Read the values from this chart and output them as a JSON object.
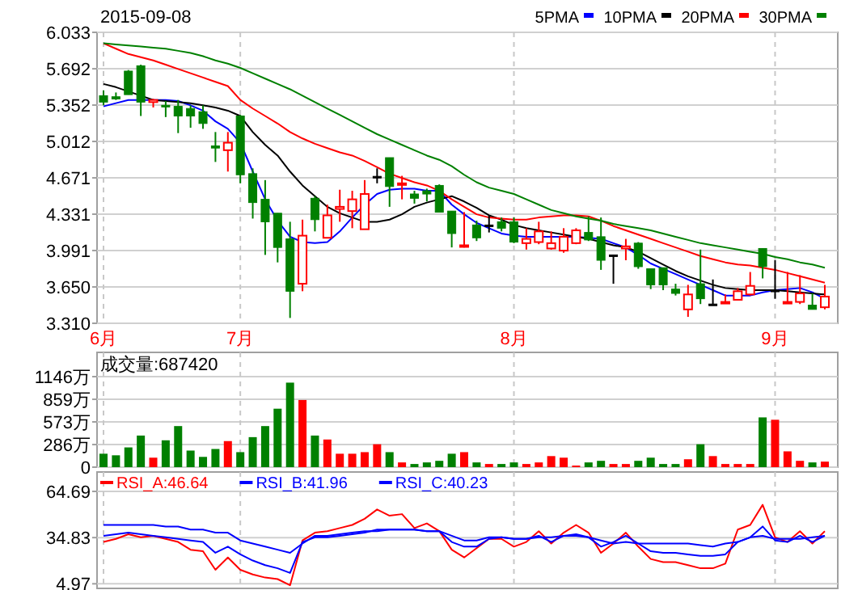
{
  "chart_data": [
    {
      "type": "candlestick",
      "title": "2015-09-08",
      "legend": "top right",
      "grid": true,
      "categories": [
        "6月",
        null,
        null,
        null,
        null,
        null,
        null,
        null,
        null,
        null,
        null,
        "7月",
        null,
        null,
        null,
        null,
        null,
        null,
        null,
        null,
        null,
        null,
        null,
        null,
        null,
        null,
        null,
        null,
        null,
        null,
        null,
        null,
        null,
        "8月",
        null,
        null,
        null,
        null,
        null,
        null,
        null,
        null,
        null,
        null,
        null,
        null,
        null,
        null,
        null,
        null,
        null,
        null,
        null,
        null,
        "9月",
        null,
        null,
        null,
        null
      ],
      "ylim": [
        3.31,
        6.033
      ],
      "yticks": [
        {
          "value": 3.31,
          "label": "3.310"
        },
        {
          "value": 3.65,
          "label": "3.650"
        },
        {
          "value": 3.991,
          "label": "3.991"
        },
        {
          "value": 4.331,
          "label": "4.331"
        },
        {
          "value": 4.671,
          "label": "4.671"
        },
        {
          "value": 5.012,
          "label": "5.012"
        },
        {
          "value": 5.352,
          "label": "5.352"
        },
        {
          "value": 5.692,
          "label": "5.692"
        },
        {
          "value": 6.033,
          "label": "6.033"
        }
      ],
      "ohlc": [
        [
          5.44,
          5.49,
          5.35,
          5.38
        ],
        [
          5.43,
          5.47,
          5.4,
          5.41
        ],
        [
          5.67,
          5.68,
          5.45,
          5.45
        ],
        [
          5.72,
          5.73,
          5.25,
          5.38
        ],
        [
          5.38,
          5.41,
          5.33,
          5.4
        ],
        [
          5.35,
          5.39,
          5.24,
          5.34
        ],
        [
          5.34,
          5.4,
          5.09,
          5.25
        ],
        [
          5.32,
          5.35,
          5.14,
          5.25
        ],
        [
          5.29,
          5.35,
          5.13,
          5.18
        ],
        [
          4.97,
          5.1,
          4.82,
          4.95
        ],
        [
          4.93,
          5.1,
          4.73,
          5.0
        ],
        [
          5.25,
          5.26,
          4.62,
          4.7
        ],
        [
          4.71,
          4.76,
          4.29,
          4.44
        ],
        [
          4.47,
          4.65,
          3.95,
          4.26
        ],
        [
          4.34,
          4.34,
          3.88,
          4.02
        ],
        [
          4.1,
          4.26,
          3.36,
          3.61
        ],
        [
          3.68,
          4.28,
          3.61,
          4.13
        ],
        [
          4.48,
          4.5,
          4.17,
          4.28
        ],
        [
          4.11,
          4.42,
          4.11,
          4.32
        ],
        [
          4.38,
          4.56,
          4.26,
          4.4
        ],
        [
          4.36,
          4.55,
          4.2,
          4.47
        ],
        [
          4.19,
          4.65,
          4.19,
          4.52
        ],
        [
          4.685,
          4.76,
          4.62,
          4.685
        ],
        [
          4.86,
          4.86,
          4.4,
          4.59
        ],
        [
          4.61,
          4.69,
          4.47,
          4.62
        ],
        [
          4.52,
          4.55,
          4.43,
          4.48
        ],
        [
          4.55,
          4.57,
          4.45,
          4.52
        ],
        [
          4.6,
          4.61,
          4.35,
          4.35
        ],
        [
          4.36,
          4.36,
          4.02,
          4.15
        ],
        [
          4.03,
          4.35,
          4.02,
          4.04
        ],
        [
          4.23,
          4.27,
          4.08,
          4.11
        ],
        [
          4.23,
          4.32,
          4.16,
          4.23
        ],
        [
          4.26,
          4.3,
          4.17,
          4.2
        ],
        [
          4.26,
          4.3,
          4.06,
          4.07
        ],
        [
          4.06,
          4.2,
          4.0,
          4.1
        ],
        [
          4.07,
          4.26,
          4.05,
          4.17
        ],
        [
          4.01,
          4.17,
          4.0,
          4.06
        ],
        [
          3.99,
          4.2,
          3.97,
          4.12
        ],
        [
          4.06,
          4.2,
          4.05,
          4.18
        ],
        [
          4.16,
          4.31,
          4.08,
          4.09
        ],
        [
          4.12,
          4.3,
          3.81,
          3.9
        ],
        [
          3.95,
          3.95,
          3.68,
          3.95
        ],
        [
          4.01,
          4.1,
          3.9,
          4.03
        ],
        [
          4.06,
          4.07,
          3.82,
          3.84
        ],
        [
          3.82,
          3.82,
          3.63,
          3.67
        ],
        [
          3.83,
          3.83,
          3.62,
          3.67
        ],
        [
          3.63,
          3.68,
          3.57,
          3.59
        ],
        [
          3.44,
          3.67,
          3.37,
          3.58
        ],
        [
          3.68,
          4.0,
          3.49,
          3.54
        ],
        [
          3.49,
          3.72,
          3.49,
          3.49
        ],
        [
          3.5,
          3.58,
          3.5,
          3.51
        ],
        [
          3.53,
          3.64,
          3.53,
          3.61
        ],
        [
          3.58,
          3.79,
          3.57,
          3.66
        ],
        [
          4.01,
          4.01,
          3.73,
          3.84
        ],
        [
          3.62,
          3.9,
          3.54,
          3.62
        ],
        [
          3.5,
          3.79,
          3.5,
          3.51
        ],
        [
          3.51,
          3.76,
          3.49,
          3.59
        ],
        [
          3.48,
          3.59,
          3.44,
          3.44
        ],
        [
          3.46,
          3.67,
          3.44,
          3.56
        ]
      ],
      "series": [
        {
          "name": "5PMA",
          "type": "line",
          "color": "#0000ff",
          "values": [
            5.34,
            5.37,
            5.4,
            5.4,
            5.4,
            5.4,
            5.39,
            5.35,
            5.3,
            5.2,
            5.13,
            5.0,
            4.73,
            4.47,
            4.27,
            4.12,
            4.07,
            4.06,
            4.07,
            4.17,
            4.3,
            4.42,
            4.52,
            4.56,
            4.57,
            4.57,
            4.55,
            4.55,
            4.42,
            4.33,
            4.25,
            4.2,
            4.15,
            4.13,
            4.12,
            4.12,
            4.12,
            4.12,
            4.12,
            4.11,
            4.1,
            4.06,
            4.02,
            3.95,
            3.87,
            3.82,
            3.77,
            3.72,
            3.67,
            3.62,
            3.57,
            3.57,
            3.57,
            3.6,
            3.62,
            3.63,
            3.64,
            3.6,
            3.54
          ]
        },
        {
          "name": "10PMA",
          "type": "line",
          "color": "#000000",
          "values": [
            5.55,
            5.52,
            5.48,
            5.44,
            5.4,
            5.39,
            5.38,
            5.37,
            5.35,
            5.33,
            5.3,
            5.25,
            5.1,
            4.98,
            4.88,
            4.73,
            4.6,
            4.5,
            4.4,
            4.34,
            4.3,
            4.26,
            4.26,
            4.28,
            4.33,
            4.4,
            4.44,
            4.47,
            4.5,
            4.45,
            4.39,
            4.32,
            4.28,
            4.23,
            4.2,
            4.18,
            4.16,
            4.14,
            4.12,
            4.1,
            4.07,
            4.04,
            4.02,
            3.98,
            3.92,
            3.86,
            3.8,
            3.75,
            3.71,
            3.67,
            3.64,
            3.63,
            3.62,
            3.62,
            3.62,
            3.61,
            3.6,
            3.59,
            3.58
          ]
        },
        {
          "name": "20PMA",
          "type": "line",
          "color": "#ff0000",
          "values": [
            5.93,
            5.88,
            5.83,
            5.8,
            5.77,
            5.73,
            5.69,
            5.65,
            5.61,
            5.57,
            5.53,
            5.4,
            5.32,
            5.25,
            5.18,
            5.1,
            5.04,
            4.99,
            4.95,
            4.91,
            4.88,
            4.83,
            4.77,
            4.71,
            4.67,
            4.63,
            4.6,
            4.55,
            4.47,
            4.4,
            4.33,
            4.3,
            4.29,
            4.28,
            4.28,
            4.3,
            4.31,
            4.32,
            4.32,
            4.31,
            4.27,
            4.22,
            4.18,
            4.14,
            4.1,
            4.06,
            4.02,
            3.98,
            3.94,
            3.91,
            3.88,
            3.86,
            3.85,
            3.83,
            3.81,
            3.78,
            3.75,
            3.72,
            3.69
          ]
        },
        {
          "name": "30PMA",
          "type": "line",
          "color": "#008000",
          "values": [
            5.93,
            5.92,
            5.91,
            5.9,
            5.89,
            5.88,
            5.86,
            5.84,
            5.81,
            5.77,
            5.74,
            5.7,
            5.65,
            5.6,
            5.55,
            5.5,
            5.44,
            5.38,
            5.32,
            5.26,
            5.2,
            5.14,
            5.08,
            5.03,
            4.98,
            4.93,
            4.88,
            4.84,
            4.78,
            4.7,
            4.63,
            4.58,
            4.55,
            4.52,
            4.47,
            4.42,
            4.37,
            4.34,
            4.31,
            4.29,
            4.27,
            4.24,
            4.22,
            4.2,
            4.18,
            4.15,
            4.12,
            4.09,
            4.06,
            4.04,
            4.02,
            4.0,
            3.98,
            3.96,
            3.93,
            3.91,
            3.88,
            3.86,
            3.83
          ]
        }
      ]
    },
    {
      "type": "bar",
      "title": "成交量:687420",
      "grid": true,
      "tick_labels": "y",
      "categories": [
        null,
        null,
        null,
        null,
        null,
        null,
        null,
        null,
        null,
        null,
        null,
        null,
        null,
        null,
        null,
        null,
        null,
        null,
        null,
        null,
        null,
        null,
        null,
        null,
        null,
        null,
        null,
        null,
        null,
        null,
        null,
        null,
        null,
        null,
        null,
        null,
        null,
        null,
        null,
        null,
        null,
        null,
        null,
        null,
        null,
        null,
        null,
        null,
        null,
        null,
        null,
        null,
        null,
        null,
        null,
        null,
        null,
        null,
        null
      ],
      "ylim": [
        0,
        1146
      ],
      "yticks": [
        0,
        {
          "value": 286,
          "label": "286万"
        },
        {
          "value": 573,
          "label": "573万"
        },
        {
          "value": 859,
          "label": "859万"
        },
        {
          "value": 1146,
          "label": "1146万"
        }
      ],
      "values": [
        170,
        150,
        250,
        400,
        120,
        340,
        520,
        210,
        130,
        230,
        330,
        190,
        380,
        520,
        740,
        1070,
        850,
        400,
        350,
        170,
        170,
        190,
        290,
        190,
        60,
        40,
        60,
        80,
        170,
        190,
        60,
        40,
        40,
        60,
        40,
        60,
        140,
        120,
        20,
        60,
        80,
        40,
        40,
        80,
        120,
        40,
        40,
        100,
        290,
        140,
        40,
        40,
        40,
        630,
        600,
        200,
        80,
        60,
        70
      ],
      "colors": [
        "#008000",
        "#008000",
        "#008000",
        "#008000",
        "#ff0000",
        "#008000",
        "#008000",
        "#008000",
        "#008000",
        "#008000",
        "#ff0000",
        "#008000",
        "#008000",
        "#008000",
        "#008000",
        "#008000",
        "#ff0000",
        "#008000",
        "#ff0000",
        "#ff0000",
        "#ff0000",
        "#ff0000",
        "#ff0000",
        "#008000",
        "#ff0000",
        "#008000",
        "#008000",
        "#008000",
        "#008000",
        "#ff0000",
        "#008000",
        "#ff0000",
        "#008000",
        "#008000",
        "#ff0000",
        "#ff0000",
        "#ff0000",
        "#ff0000",
        "#ff0000",
        "#008000",
        "#008000",
        "#ff0000",
        "#ff0000",
        "#008000",
        "#008000",
        "#008000",
        "#008000",
        "#ff0000",
        "#008000",
        "#ff0000",
        "#ff0000",
        "#ff0000",
        "#ff0000",
        "#008000",
        "#ff0000",
        "#ff0000",
        "#ff0000",
        "#008000",
        "#ff0000"
      ]
    },
    {
      "type": "line",
      "legend": "top left",
      "grid": true,
      "tick_labels": "y",
      "categories": [
        null,
        null,
        null,
        null,
        null,
        null,
        null,
        null,
        null,
        null,
        null,
        null,
        null,
        null,
        null,
        null,
        null,
        null,
        null,
        null,
        null,
        null,
        null,
        null,
        null,
        null,
        null,
        null,
        null,
        null,
        null,
        null,
        null,
        null,
        null,
        null,
        null,
        null,
        null,
        null,
        null,
        null,
        null,
        null,
        null,
        null,
        null,
        null,
        null,
        null,
        null,
        null,
        null,
        null,
        null,
        null,
        null,
        null,
        null
      ],
      "ylim": [
        2,
        64.69
      ],
      "yticks": [
        4.97,
        34.83,
        64.69
      ],
      "series": [
        {
          "name": "RSI_A:46.64",
          "color": "#ff0000",
          "values": [
            32,
            34,
            37,
            35,
            36,
            34,
            32,
            27,
            26,
            14,
            22,
            14,
            11,
            9,
            8,
            4,
            33,
            38,
            39,
            41,
            43,
            47,
            53,
            49,
            50,
            41,
            44,
            39,
            27,
            22,
            28,
            34,
            34,
            29,
            32,
            39,
            31,
            38,
            43,
            38,
            25,
            31,
            38,
            29,
            21,
            19,
            19,
            17,
            15,
            15,
            18,
            40,
            43,
            56,
            35,
            32,
            39,
            31,
            39
          ]
        },
        {
          "name": "RSI_B:41.96",
          "color": "#0000ff",
          "values": [
            36,
            37,
            38,
            37,
            36,
            35,
            34,
            33,
            32,
            25,
            29,
            24,
            20,
            17,
            15,
            12,
            32,
            35,
            35,
            36,
            37,
            38,
            40,
            40,
            40,
            40,
            39,
            39,
            32,
            29,
            29,
            34,
            35,
            34,
            34,
            36,
            32,
            36,
            37,
            35,
            29,
            32,
            36,
            31,
            26,
            25,
            25,
            24,
            23,
            23,
            24,
            32,
            35,
            42,
            33,
            32,
            36,
            32,
            36
          ]
        },
        {
          "name": "RSI_C:40.23",
          "color": "#0000ff",
          "values": [
            43,
            43,
            43,
            43,
            43,
            42,
            42,
            40,
            40,
            38,
            38,
            33,
            31,
            29,
            27,
            25,
            31,
            36,
            36,
            37,
            38,
            39,
            39,
            40,
            40,
            40,
            39,
            39,
            36,
            33,
            33,
            35,
            35,
            34,
            34,
            35,
            35,
            36,
            36,
            35,
            33,
            31,
            32,
            31,
            31,
            31,
            31,
            31,
            30,
            29,
            31,
            32,
            35,
            36,
            34,
            34,
            34,
            35,
            36
          ]
        }
      ]
    }
  ]
}
